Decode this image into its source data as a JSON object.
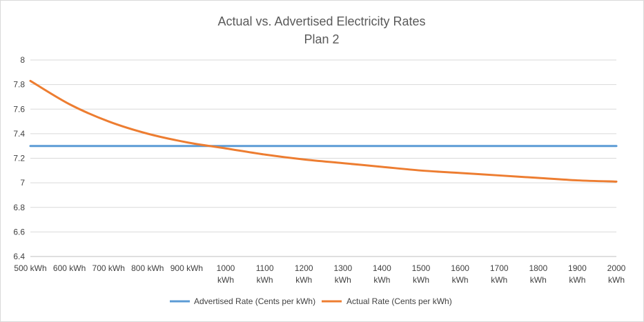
{
  "chart_data": {
    "type": "line",
    "title": "Actual vs. Advertised  Electricity Rates",
    "subtitle": "Plan 2",
    "xlabel": "",
    "ylabel": "",
    "categories": [
      [
        "500 kWh"
      ],
      [
        "600 kWh"
      ],
      [
        "700 kWh"
      ],
      [
        "800 kWh"
      ],
      [
        "900 kWh"
      ],
      [
        "1000",
        "kWh"
      ],
      [
        "1100",
        "kWh"
      ],
      [
        "1200",
        "kWh"
      ],
      [
        "1300",
        "kWh"
      ],
      [
        "1400",
        "kWh"
      ],
      [
        "1500",
        "kWh"
      ],
      [
        "1600",
        "kWh"
      ],
      [
        "1700",
        "kWh"
      ],
      [
        "1800",
        "kWh"
      ],
      [
        "1900",
        "kWh"
      ],
      [
        "2000",
        "kWh"
      ]
    ],
    "x": [
      500,
      600,
      700,
      800,
      900,
      1000,
      1100,
      1200,
      1300,
      1400,
      1500,
      1600,
      1700,
      1800,
      1900,
      2000
    ],
    "ylim": [
      6.4,
      8
    ],
    "yticks": [
      "6.4",
      "6.6",
      "6.8",
      "7",
      "7.2",
      "7.4",
      "7.6",
      "7.8",
      "8"
    ],
    "grid": true,
    "legend_position": "bottom",
    "series": [
      {
        "name": "Advertised Rate (Cents per kWh)",
        "color": "#5b9bd5",
        "values": [
          7.3,
          7.3,
          7.3,
          7.3,
          7.3,
          7.3,
          7.3,
          7.3,
          7.3,
          7.3,
          7.3,
          7.3,
          7.3,
          7.3,
          7.3,
          7.3
        ]
      },
      {
        "name": "Actual Rate  (Cents per kWh)",
        "color": "#ed7d31",
        "values": [
          7.83,
          7.64,
          7.5,
          7.4,
          7.33,
          7.28,
          7.23,
          7.19,
          7.16,
          7.13,
          7.1,
          7.08,
          7.06,
          7.04,
          7.02,
          7.01
        ]
      }
    ]
  }
}
